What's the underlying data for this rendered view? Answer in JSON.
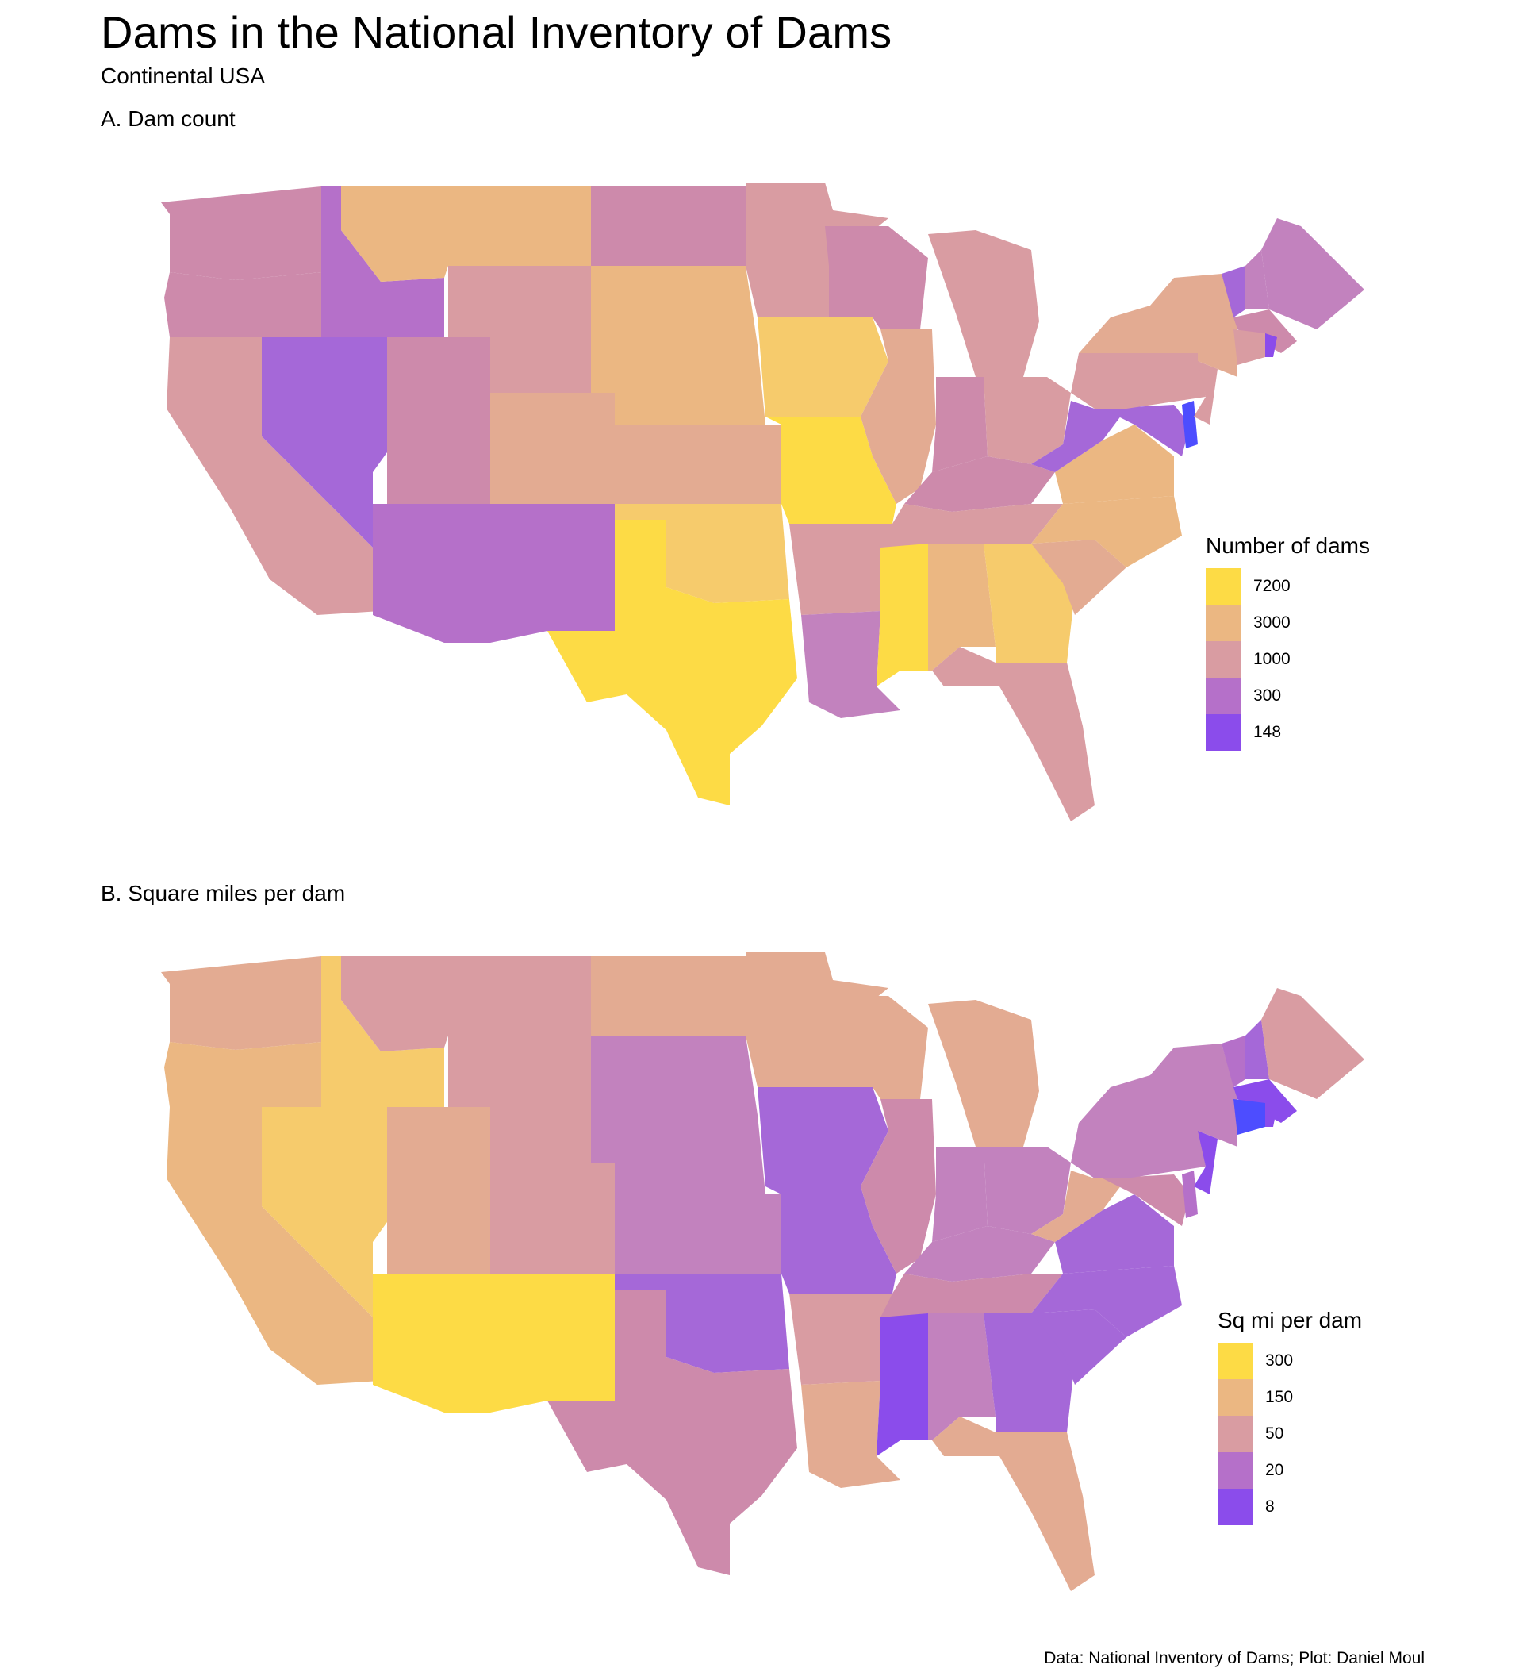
{
  "title": "Dams in the National Inventory of Dams",
  "subtitle": "Continental USA",
  "caption": "Data: National Inventory of Dams; Plot: Daniel Moul",
  "scale_colors": {
    "yellow": "#FDDB45",
    "orange_light": "#F6CB6C",
    "orange": "#EBB782",
    "peach": "#E3AB92",
    "rose": "#D99CA2",
    "pink": "#CD8AAB",
    "mauve": "#C282BE",
    "purple_light": "#B570C9",
    "purple": "#A568D8",
    "violet": "#8B4CEB",
    "blue": "#4D4DFF"
  },
  "panels": [
    {
      "id": "A",
      "title": "A. Dam count",
      "legend": {
        "title": "Number of dams",
        "items": [
          {
            "label": "7200",
            "color": "#FDDB45"
          },
          {
            "label": "3000",
            "color": "#EBB782"
          },
          {
            "label": "1000",
            "color": "#D99CA2"
          },
          {
            "label": "300",
            "color": "#B570C9"
          },
          {
            "label": "148",
            "color": "#8B4CEB"
          }
        ]
      },
      "state_fill": {
        "WA": "#CD8AAB",
        "OR": "#CD8AAB",
        "CA": "#D99CA2",
        "ID": "#B570C9",
        "NV": "#A568D8",
        "MT": "#EBB782",
        "WY": "#D99CA2",
        "UT": "#CD8AAB",
        "AZ": "#B570C9",
        "CO": "#E3AB92",
        "NM": "#B570C9",
        "ND": "#CD8AAB",
        "SD": "#EBB782",
        "NE": "#EBB782",
        "KS": "#E3AB92",
        "OK": "#F6CB6C",
        "TX": "#FDDB45",
        "MN": "#D99CA2",
        "IA": "#F6CB6C",
        "MO": "#FDDB45",
        "AR": "#D99CA2",
        "LA": "#C282BE",
        "WI": "#CD8AAB",
        "IL": "#E3AB92",
        "MI": "#D99CA2",
        "IN": "#CD8AAB",
        "OH": "#D99CA2",
        "KY": "#CD8AAB",
        "TN": "#D99CA2",
        "MS": "#FDDB45",
        "AL": "#EBB782",
        "GA": "#F6CB6C",
        "FL": "#D99CA2",
        "SC": "#E3AB92",
        "NC": "#EBB782",
        "VA": "#EBB782",
        "WV": "#A568D8",
        "PA": "#D99CA2",
        "NY": "#E3AB92",
        "VT": "#A568D8",
        "NH": "#C282BE",
        "ME": "#C282BE",
        "MA": "#CD8AAB",
        "CT": "#D99CA2",
        "RI": "#8B4CEB",
        "NJ": "#D99CA2",
        "DE": "#4D4DFF",
        "MD": "#A568D8"
      }
    },
    {
      "id": "B",
      "title": "B. Square miles per dam",
      "legend": {
        "title": "Sq mi per dam",
        "items": [
          {
            "label": "300",
            "color": "#FDDB45"
          },
          {
            "label": "150",
            "color": "#EBB782"
          },
          {
            "label": "50",
            "color": "#D99CA2"
          },
          {
            "label": "20",
            "color": "#B570C9"
          },
          {
            "label": "8",
            "color": "#8B4CEB"
          }
        ]
      },
      "state_fill": {
        "WA": "#E3AB92",
        "OR": "#EBB782",
        "CA": "#EBB782",
        "ID": "#F6CB6C",
        "NV": "#F6CB6C",
        "MT": "#D99CA2",
        "WY": "#D99CA2",
        "UT": "#E3AB92",
        "AZ": "#FDDB45",
        "CO": "#D99CA2",
        "NM": "#FDDB45",
        "ND": "#E3AB92",
        "SD": "#C282BE",
        "NE": "#C282BE",
        "KS": "#C282BE",
        "OK": "#A568D8",
        "TX": "#CD8AAB",
        "MN": "#E3AB92",
        "IA": "#A568D8",
        "MO": "#A568D8",
        "AR": "#D99CA2",
        "LA": "#E3AB92",
        "WI": "#E3AB92",
        "IL": "#CD8AAB",
        "MI": "#E3AB92",
        "IN": "#C282BE",
        "OH": "#C282BE",
        "KY": "#C282BE",
        "TN": "#CD8AAB",
        "MS": "#8B4CEB",
        "AL": "#C282BE",
        "GA": "#A568D8",
        "FL": "#E3AB92",
        "SC": "#A568D8",
        "NC": "#A568D8",
        "VA": "#A568D8",
        "WV": "#E3AB92",
        "PA": "#C282BE",
        "NY": "#C282BE",
        "VT": "#B570C9",
        "NH": "#A568D8",
        "ME": "#D99CA2",
        "MA": "#8B4CEB",
        "CT": "#4D4DFF",
        "RI": "#8B4CEB",
        "NJ": "#8B4CEB",
        "DE": "#B570C9",
        "MD": "#CD8AAB"
      }
    }
  ]
}
